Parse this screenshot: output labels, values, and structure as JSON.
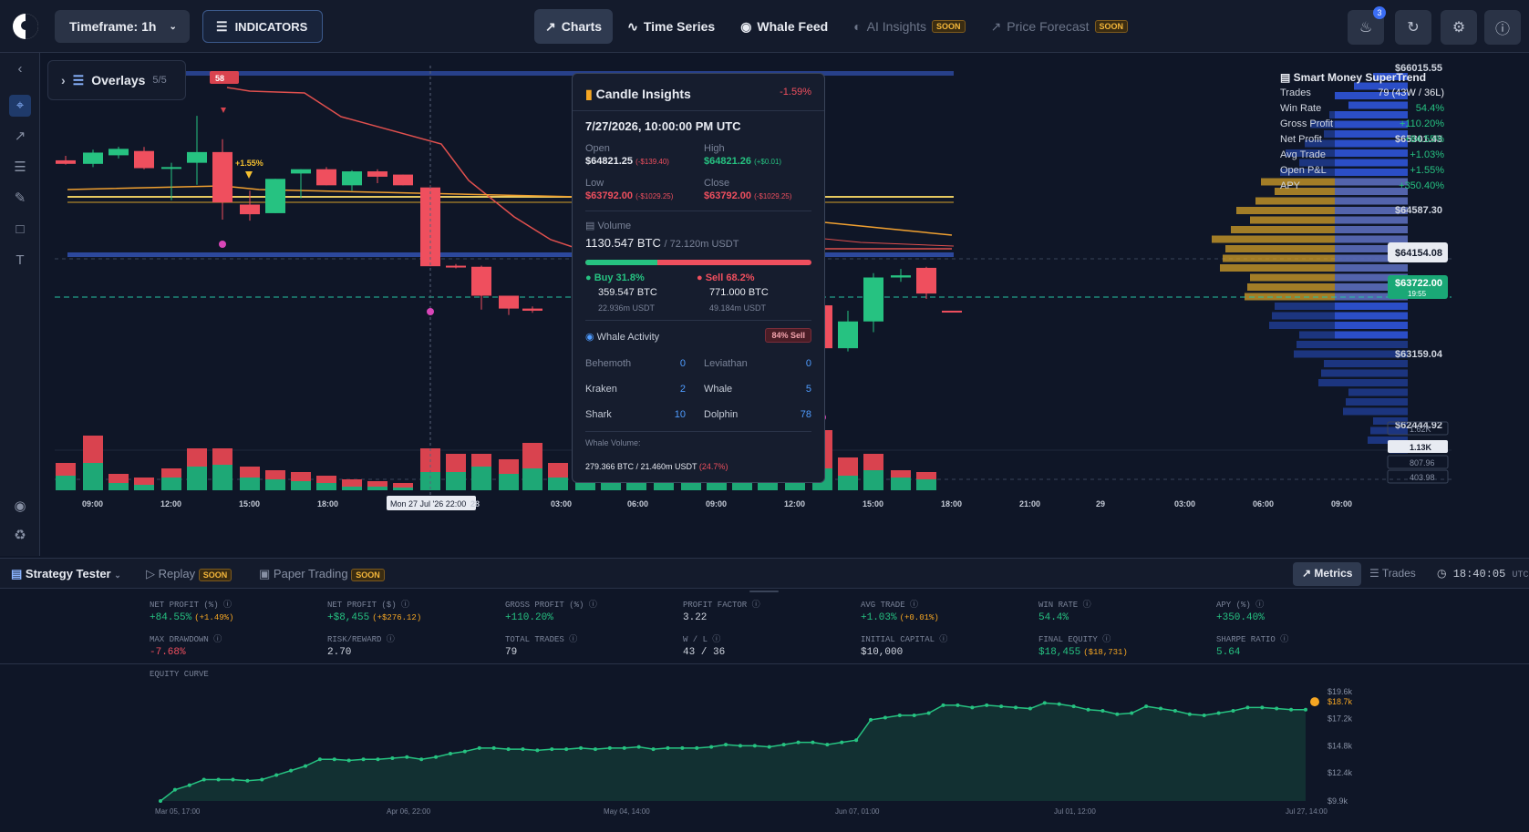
{
  "topbar": {
    "timeframe": "Timeframe: 1h",
    "indicators": "INDICATORS",
    "nav": [
      {
        "label": "Charts",
        "soon": ""
      },
      {
        "label": "Time Series",
        "soon": ""
      },
      {
        "label": "Whale Feed",
        "soon": ""
      },
      {
        "label": "AI Insights",
        "soon": "SOON"
      },
      {
        "label": "Price Forecast",
        "soon": "SOON"
      }
    ],
    "notifications_count": "3"
  },
  "overlays": {
    "label": "Overlays",
    "count": "5/5"
  },
  "chart": {
    "price_labels": [
      "$66015.55",
      "$65301.43",
      "$64587.30",
      "$64154.08",
      "$63722.00",
      "19:55",
      "$63159.04",
      "$62444.92"
    ],
    "volume_labels": [
      "1.62K",
      "1.13K",
      "807.96",
      "403.98"
    ],
    "time_labels": [
      "09:00",
      "12:00",
      "15:00",
      "18:00",
      "Mon 27 Jul '26 22:00",
      "28",
      "03:00",
      "06:00",
      "09:00",
      "12:00",
      "15:00",
      "18:00",
      "21:00",
      "29",
      "03:00",
      "06:00",
      "09:00"
    ],
    "marker_badge": "58",
    "marker_pct": "+1.55%"
  },
  "supertrend": {
    "title": "Smart Money SuperTrend",
    "rows": [
      {
        "k": "Trades",
        "v": "79 (43W / 36L)"
      },
      {
        "k": "Win Rate",
        "v": "54.4%"
      },
      {
        "k": "Gross Profit",
        "v": "+110.20%"
      },
      {
        "k": "Net Profit",
        "v": "+84.55%"
      },
      {
        "k": "Avg Trade",
        "v": "+1.03%"
      },
      {
        "k": "Open P&L",
        "v": "+1.55%"
      },
      {
        "k": "APY",
        "v": "+350.40%"
      }
    ]
  },
  "insights": {
    "title": "Candle Insights",
    "change": "-1.59%",
    "datetime": "7/27/2026, 10:00:00 PM UTC",
    "open_label": "Open",
    "open": "$64821.25",
    "open_delta": "(-$139.40)",
    "high_label": "High",
    "high": "$64821.26",
    "high_delta": "(+$0.01)",
    "low_label": "Low",
    "low": "$63792.00",
    "low_delta": "(-$1029.25)",
    "close_label": "Close",
    "close": "$63792.00",
    "close_delta": "(-$1029.25)",
    "volume_label": "Volume",
    "volume": "1130.547 BTC",
    "volume_usdt": "/ 72.120m USDT",
    "buy_label": "Buy 31.8%",
    "buy_btc": "359.547 BTC",
    "buy_usdt": "22.936m USDT",
    "sell_label": "Sell 68.2%",
    "sell_btc": "771.000 BTC",
    "sell_usdt": "49.184m USDT",
    "buy_fraction": 0.318,
    "whale_title": "Whale Activity",
    "whale_badge": "84% Sell",
    "whales": [
      {
        "name": "Behemoth",
        "count": "0"
      },
      {
        "name": "Leviathan",
        "count": "0"
      },
      {
        "name": "Kraken",
        "count": "2"
      },
      {
        "name": "Whale",
        "count": "5"
      },
      {
        "name": "Shark",
        "count": "10"
      },
      {
        "name": "Dolphin",
        "count": "78"
      }
    ],
    "whale_volume_label": "Whale Volume:",
    "whale_volume": "279.366 BTC / 21.460m USDT",
    "whale_volume_pct": "(24.7%)"
  },
  "strategy": {
    "title": "Strategy Tester",
    "replay": "Replay",
    "replay_soon": "SOON",
    "paper": "Paper Trading",
    "paper_soon": "SOON",
    "metrics_tab": "Metrics",
    "trades_tab": "Trades",
    "clock": "18:40:05",
    "tz": "UTC"
  },
  "metrics": [
    {
      "label": "NET PROFIT (%)",
      "value": "+84.55%",
      "extra": "(+1.49%)"
    },
    {
      "label": "NET PROFIT ($)",
      "value": "+$8,455",
      "extra": "(+$276.12)"
    },
    {
      "label": "GROSS PROFIT (%)",
      "value": "+110.20%",
      "extra": ""
    },
    {
      "label": "PROFIT FACTOR",
      "value": "3.22",
      "extra": ""
    },
    {
      "label": "AVG TRADE",
      "value": "+1.03%",
      "extra": "(+0.01%)"
    },
    {
      "label": "WIN RATE",
      "value": "54.4%",
      "extra": ""
    },
    {
      "label": "APY (%)",
      "value": "+350.40%",
      "extra": ""
    },
    {
      "label": "MAX DRAWDOWN",
      "value": "-7.68%",
      "extra": ""
    },
    {
      "label": "RISK/REWARD",
      "value": "2.70",
      "extra": ""
    },
    {
      "label": "TOTAL TRADES",
      "value": "79",
      "extra": ""
    },
    {
      "label": "W / L",
      "value": "43 / 36",
      "extra": ""
    },
    {
      "label": "INITIAL CAPITAL",
      "value": "$10,000",
      "extra": ""
    },
    {
      "label": "FINAL EQUITY",
      "value": "$18,455",
      "extra": "($18,731)"
    },
    {
      "label": "SHARPE RATIO",
      "value": "5.64",
      "extra": ""
    }
  ],
  "equity": {
    "title": "EQUITY CURVE",
    "y_labels": [
      "$19.6k",
      "$18.7k",
      "$17.2k",
      "$14.8k",
      "$12.4k",
      "$9.9k"
    ],
    "x_labels": [
      "Mar 05, 17:00",
      "Apr 06, 22:00",
      "May 04, 14:00",
      "Jun 07, 01:00",
      "Jul 01, 12:00",
      "Jul 27, 14:00"
    ]
  },
  "colors": {
    "up": "#26c281",
    "down": "#ef4f5e",
    "accent": "#3b6ef5",
    "gold": "#f5a623"
  }
}
